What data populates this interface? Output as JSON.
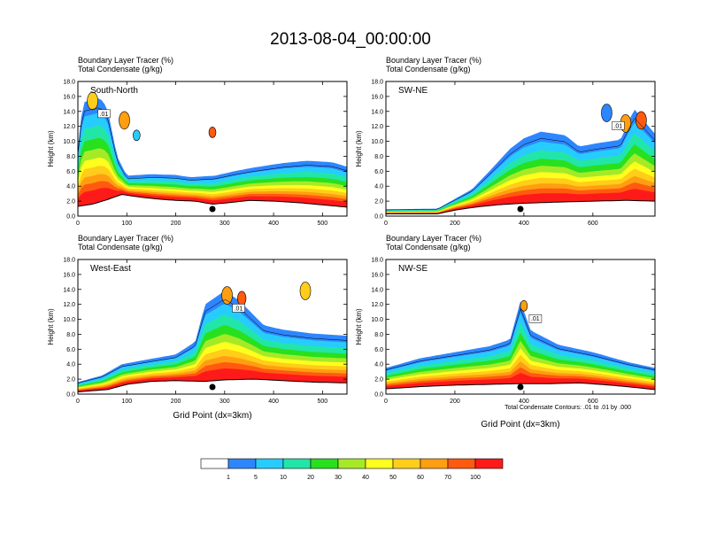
{
  "figure": {
    "title": "2013-08-04_00:00:00",
    "contour_note": "Total Condensate Contours: .01 to .01 by .000"
  },
  "colorbar": {
    "colors": [
      "#ffffff",
      "#2e86ff",
      "#27ccff",
      "#22e6a8",
      "#28e01e",
      "#a6ea27",
      "#ffff1e",
      "#ffcd1a",
      "#ff9e10",
      "#ff5a10",
      "#ff1a1a"
    ],
    "labels": [
      "1",
      "5",
      "10",
      "20",
      "30",
      "40",
      "50",
      "60",
      "70",
      "100"
    ]
  },
  "chart_data": [
    {
      "type": "heatmap",
      "title": "South-North",
      "subtitle_line1": "Boundary Layer Tracer   (%)",
      "subtitle_line2": "Total Condensate   (g/kg)",
      "ylabel": "Height (km)",
      "xlabel": "",
      "ylim": [
        0,
        18
      ],
      "xlim": [
        0,
        550
      ],
      "yticks": [
        "0.0",
        "2.0",
        "4.0",
        "6.0",
        "8.0",
        "10.0",
        "12.0",
        "14.0",
        "16.0",
        "18.0"
      ],
      "xticks": [
        0,
        100,
        200,
        300,
        400,
        500
      ],
      "xtick_labels": [
        "0",
        "100",
        "200",
        "300",
        "400",
        "500"
      ],
      "marker_x": 275,
      "contour_label": ".01",
      "terrain_km": [
        [
          0,
          1.3
        ],
        [
          30,
          1.6
        ],
        [
          60,
          2.2
        ],
        [
          90,
          2.9
        ],
        [
          120,
          2.6
        ],
        [
          160,
          2.3
        ],
        [
          200,
          2.1
        ],
        [
          240,
          2.0
        ],
        [
          275,
          1.6
        ],
        [
          310,
          1.8
        ],
        [
          350,
          2.1
        ],
        [
          400,
          2.0
        ],
        [
          450,
          1.8
        ],
        [
          500,
          1.5
        ],
        [
          550,
          1.2
        ]
      ],
      "plume_top_km": [
        [
          0,
          9
        ],
        [
          10,
          15.2
        ],
        [
          45,
          15.8
        ],
        [
          60,
          14.5
        ],
        [
          80,
          8
        ],
        [
          100,
          5.4
        ],
        [
          150,
          5.6
        ],
        [
          200,
          5.5
        ],
        [
          230,
          5.2
        ],
        [
          280,
          5.4
        ],
        [
          320,
          6
        ],
        [
          360,
          6.5
        ],
        [
          420,
          7.1
        ],
        [
          470,
          7.4
        ],
        [
          520,
          7.2
        ],
        [
          550,
          6.6
        ]
      ],
      "cells": [
        [
          30,
          15.4,
          1,
          "#ffcd1a"
        ],
        [
          95,
          12.8,
          1,
          "#ff9e10"
        ],
        [
          275,
          11.2,
          0.5,
          "#ff5a10"
        ],
        [
          120,
          10.8,
          0.6,
          "#27ccff"
        ]
      ]
    },
    {
      "type": "heatmap",
      "title": "SW-NE",
      "subtitle_line1": "Boundary Layer Tracer   (%)",
      "subtitle_line2": "Total Condensate   (g/kg)",
      "ylabel": "Height (km)",
      "xlabel": "",
      "ylim": [
        0,
        18
      ],
      "xlim": [
        0,
        780
      ],
      "yticks": [
        "0.0",
        "2.0",
        "4.0",
        "6.0",
        "8.0",
        "10.0",
        "12.0",
        "14.0",
        "16.0",
        "18.0"
      ],
      "xticks": [
        0,
        200,
        400,
        600
      ],
      "xtick_labels": [
        "0",
        "200",
        "400",
        "600"
      ],
      "marker_x": 390,
      "contour_label": ".01",
      "terrain_km": [
        [
          0,
          0.3
        ],
        [
          150,
          0.3
        ],
        [
          200,
          0.8
        ],
        [
          260,
          1.2
        ],
        [
          320,
          1.5
        ],
        [
          390,
          1.7
        ],
        [
          450,
          1.8
        ],
        [
          520,
          1.9
        ],
        [
          600,
          2.0
        ],
        [
          700,
          2.1
        ],
        [
          780,
          2.0
        ]
      ],
      "plume_top_km": [
        [
          0,
          0.9
        ],
        [
          150,
          1.0
        ],
        [
          250,
          3.6
        ],
        [
          300,
          6
        ],
        [
          360,
          9
        ],
        [
          400,
          10.4
        ],
        [
          450,
          11.3
        ],
        [
          520,
          10.8
        ],
        [
          560,
          9.3
        ],
        [
          620,
          9.8
        ],
        [
          680,
          10.2
        ],
        [
          720,
          14.3
        ],
        [
          780,
          11
        ]
      ],
      "cells": [
        [
          640,
          13.8,
          1,
          "#2e86ff"
        ],
        [
          695,
          12.4,
          1,
          "#ff9e10"
        ],
        [
          740,
          12.8,
          1,
          "#ff5a10"
        ]
      ]
    },
    {
      "type": "heatmap",
      "title": "West-East",
      "subtitle_line1": "Boundary Layer Tracer   (%)",
      "subtitle_line2": "Total Condensate   (g/kg)",
      "ylabel": "Height (km)",
      "xlabel": "Grid Point (dx=3km)",
      "ylim": [
        0,
        18
      ],
      "xlim": [
        0,
        550
      ],
      "yticks": [
        "0.0",
        "2.0",
        "4.0",
        "6.0",
        "8.0",
        "10.0",
        "12.0",
        "14.0",
        "16.0",
        "18.0"
      ],
      "xticks": [
        0,
        100,
        200,
        300,
        400,
        500
      ],
      "xtick_labels": [
        "0",
        "100",
        "200",
        "300",
        "400",
        "500"
      ],
      "marker_x": 275,
      "contour_label": ".01",
      "terrain_km": [
        [
          0,
          0.3
        ],
        [
          60,
          0.6
        ],
        [
          100,
          1.3
        ],
        [
          150,
          1.7
        ],
        [
          200,
          1.8
        ],
        [
          260,
          1.7
        ],
        [
          300,
          1.9
        ],
        [
          360,
          2.0
        ],
        [
          420,
          1.8
        ],
        [
          480,
          1.6
        ],
        [
          550,
          1.5
        ]
      ],
      "plume_top_km": [
        [
          0,
          1.6
        ],
        [
          50,
          2.5
        ],
        [
          90,
          4
        ],
        [
          140,
          4.6
        ],
        [
          200,
          5.3
        ],
        [
          240,
          7
        ],
        [
          260,
          12
        ],
        [
          300,
          13.8
        ],
        [
          330,
          12.5
        ],
        [
          380,
          9.2
        ],
        [
          420,
          8.6
        ],
        [
          480,
          8.1
        ],
        [
          550,
          7.8
        ]
      ],
      "cells": [
        [
          305,
          13.2,
          1,
          "#ff9e10"
        ],
        [
          335,
          12.8,
          0.8,
          "#ff5a10"
        ],
        [
          465,
          13.8,
          1,
          "#ffcd1a"
        ]
      ]
    },
    {
      "type": "heatmap",
      "title": "NW-SE",
      "subtitle_line1": "Boundary Layer Tracer   (%)",
      "subtitle_line2": "Total Condensate   (g/kg)",
      "ylabel": "Height (km)",
      "xlabel": "Grid Point (dx=3km)",
      "ylim": [
        0,
        18
      ],
      "xlim": [
        0,
        780
      ],
      "yticks": [
        "0.0",
        "2.0",
        "4.0",
        "6.0",
        "8.0",
        "10.0",
        "12.0",
        "14.0",
        "16.0",
        "18.0"
      ],
      "xticks": [
        0,
        200,
        400,
        600
      ],
      "xtick_labels": [
        "0",
        "200",
        "400",
        "600"
      ],
      "marker_x": 390,
      "contour_label": ".01",
      "terrain_km": [
        [
          0,
          0.7
        ],
        [
          100,
          1.0
        ],
        [
          200,
          1.2
        ],
        [
          300,
          1.3
        ],
        [
          390,
          1.4
        ],
        [
          480,
          1.4
        ],
        [
          560,
          1.5
        ],
        [
          650,
          1.2
        ],
        [
          720,
          0.9
        ],
        [
          780,
          0.6
        ]
      ],
      "plume_top_km": [
        [
          0,
          3.5
        ],
        [
          100,
          4.8
        ],
        [
          200,
          5.6
        ],
        [
          300,
          6.4
        ],
        [
          360,
          7.3
        ],
        [
          390,
          12.4
        ],
        [
          420,
          8.5
        ],
        [
          500,
          6.6
        ],
        [
          600,
          5.6
        ],
        [
          700,
          4.3
        ],
        [
          780,
          3.5
        ]
      ],
      "cells": [
        [
          400,
          11.8,
          0.6,
          "#ff9e10"
        ]
      ]
    }
  ]
}
